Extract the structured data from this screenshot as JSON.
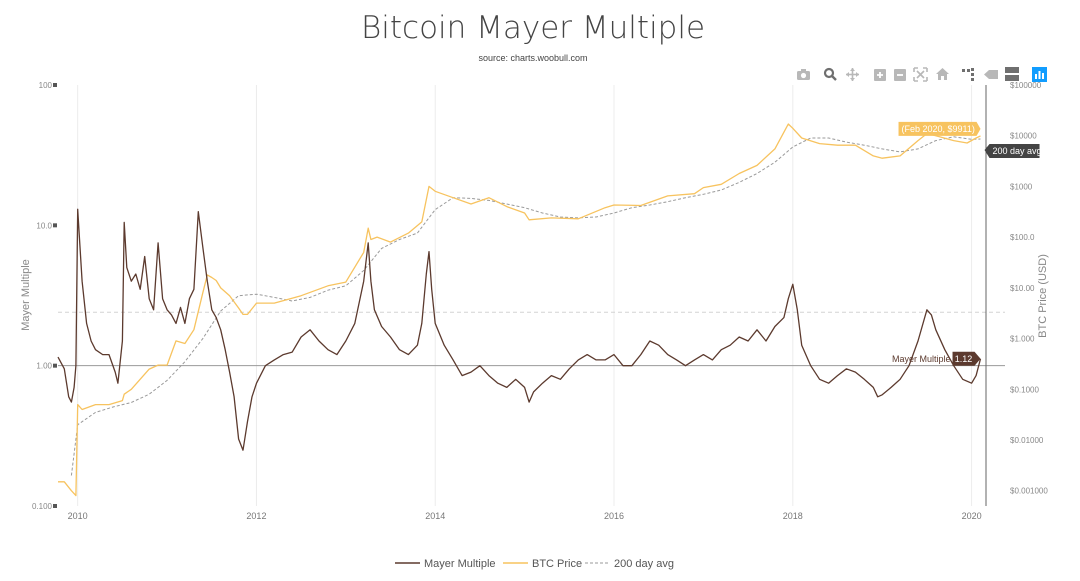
{
  "chart_data": {
    "type": "line",
    "title": "Bitcoin Mayer Multiple",
    "subtitle": "source: charts.woobull.com",
    "xlabel": "",
    "ylabel_left": "Mayer Multiple",
    "ylabel_right": "BTC Price (USD)",
    "x_ticks": [
      "2010",
      "2012",
      "2014",
      "2016",
      "2018",
      "2020"
    ],
    "x_range": [
      2009.78,
      2020.15
    ],
    "y_left_scale": "log",
    "y_left_range": [
      0.1,
      100
    ],
    "y_left_ticks": [
      "100",
      "10.0",
      "1.00",
      "0.100"
    ],
    "y_right_scale": "log",
    "y_right_range": [
      0.0005,
      100000
    ],
    "y_right_ticks": [
      "$100000",
      "$10000",
      "$1000",
      "$100.0",
      "$10.00",
      "$1.000",
      "$0.1000",
      "$0.01000",
      "$0.001000"
    ],
    "reference_lines": [
      {
        "axis": "left",
        "value": 1.0,
        "style": "solid"
      },
      {
        "axis": "left",
        "value": 2.4,
        "style": "dashed"
      }
    ],
    "grid": "vertical",
    "legend_position": "bottom-center",
    "series": [
      {
        "name": "Mayer Multiple",
        "axis": "left",
        "color": "#5c3a2e",
        "x": [
          2009.78,
          2009.85,
          2009.9,
          2009.93,
          2009.96,
          2009.98,
          2010.0,
          2010.02,
          2010.05,
          2010.1,
          2010.15,
          2010.2,
          2010.28,
          2010.35,
          2010.42,
          2010.45,
          2010.5,
          2010.52,
          2010.55,
          2010.6,
          2010.65,
          2010.7,
          2010.75,
          2010.8,
          2010.85,
          2010.9,
          2010.95,
          2011.0,
          2011.05,
          2011.1,
          2011.15,
          2011.2,
          2011.25,
          2011.3,
          2011.35,
          2011.4,
          2011.45,
          2011.5,
          2011.55,
          2011.6,
          2011.65,
          2011.7,
          2011.75,
          2011.8,
          2011.85,
          2011.9,
          2011.95,
          2012.0,
          2012.1,
          2012.2,
          2012.3,
          2012.4,
          2012.5,
          2012.6,
          2012.7,
          2012.8,
          2012.9,
          2013.0,
          2013.1,
          2013.2,
          2013.25,
          2013.28,
          2013.32,
          2013.4,
          2013.5,
          2013.6,
          2013.7,
          2013.8,
          2013.85,
          2013.9,
          2013.93,
          2013.96,
          2014.0,
          2014.1,
          2014.2,
          2014.3,
          2014.4,
          2014.5,
          2014.6,
          2014.7,
          2014.8,
          2014.9,
          2015.0,
          2015.05,
          2015.1,
          2015.2,
          2015.3,
          2015.4,
          2015.5,
          2015.6,
          2015.7,
          2015.8,
          2015.9,
          2016.0,
          2016.1,
          2016.2,
          2016.3,
          2016.4,
          2016.5,
          2016.6,
          2016.7,
          2016.8,
          2016.9,
          2017.0,
          2017.1,
          2017.2,
          2017.3,
          2017.4,
          2017.5,
          2017.6,
          2017.7,
          2017.8,
          2017.9,
          2017.95,
          2018.0,
          2018.05,
          2018.1,
          2018.2,
          2018.3,
          2018.4,
          2018.5,
          2018.6,
          2018.7,
          2018.8,
          2018.9,
          2018.95,
          2019.0,
          2019.1,
          2019.2,
          2019.3,
          2019.4,
          2019.5,
          2019.55,
          2019.6,
          2019.7,
          2019.8,
          2019.9,
          2020.0,
          2020.05,
          2020.1
        ],
        "values": [
          1.15,
          0.95,
          0.6,
          0.55,
          0.7,
          1.0,
          13.0,
          8.0,
          4.0,
          2.0,
          1.5,
          1.3,
          1.2,
          1.2,
          0.9,
          0.75,
          1.5,
          10.5,
          5.0,
          4.0,
          4.5,
          3.5,
          6.0,
          3.0,
          2.5,
          7.5,
          3.0,
          2.5,
          2.3,
          2.0,
          2.6,
          2.0,
          3.0,
          3.5,
          12.5,
          7.0,
          4.0,
          2.5,
          2.2,
          1.8,
          1.3,
          0.9,
          0.6,
          0.3,
          0.25,
          0.4,
          0.6,
          0.75,
          1.0,
          1.1,
          1.2,
          1.25,
          1.6,
          1.8,
          1.5,
          1.3,
          1.2,
          1.5,
          2.0,
          4.0,
          7.5,
          4.0,
          2.5,
          1.9,
          1.6,
          1.3,
          1.2,
          1.4,
          2.0,
          4.5,
          6.5,
          3.5,
          2.0,
          1.4,
          1.1,
          0.85,
          0.9,
          1.0,
          0.85,
          0.75,
          0.7,
          0.8,
          0.7,
          0.55,
          0.65,
          0.75,
          0.85,
          0.8,
          0.95,
          1.1,
          1.2,
          1.1,
          1.1,
          1.2,
          1.0,
          1.0,
          1.2,
          1.5,
          1.4,
          1.2,
          1.1,
          1.0,
          1.1,
          1.2,
          1.1,
          1.3,
          1.4,
          1.6,
          1.5,
          1.8,
          1.5,
          1.9,
          2.2,
          3.0,
          3.8,
          2.5,
          1.4,
          1.0,
          0.8,
          0.75,
          0.85,
          0.95,
          0.9,
          0.8,
          0.7,
          0.6,
          0.62,
          0.7,
          0.8,
          1.0,
          1.5,
          2.5,
          2.3,
          1.8,
          1.3,
          1.0,
          0.8,
          0.75,
          0.85,
          1.12
        ]
      },
      {
        "name": "BTC Price",
        "axis": "right",
        "color": "#f7c35f",
        "x": [
          2009.78,
          2009.85,
          2009.93,
          2009.98,
          2010.0,
          2010.05,
          2010.2,
          2010.35,
          2010.5,
          2010.52,
          2010.6,
          2010.8,
          2010.9,
          2011.0,
          2011.1,
          2011.2,
          2011.3,
          2011.4,
          2011.45,
          2011.5,
          2011.55,
          2011.6,
          2011.7,
          2011.8,
          2011.85,
          2011.9,
          2012.0,
          2012.2,
          2012.5,
          2012.8,
          2013.0,
          2013.2,
          2013.25,
          2013.28,
          2013.35,
          2013.5,
          2013.7,
          2013.85,
          2013.93,
          2014.0,
          2014.2,
          2014.4,
          2014.6,
          2014.8,
          2015.0,
          2015.05,
          2015.3,
          2015.6,
          2015.9,
          2016.0,
          2016.3,
          2016.6,
          2016.9,
          2017.0,
          2017.2,
          2017.4,
          2017.6,
          2017.8,
          2017.95,
          2018.0,
          2018.1,
          2018.3,
          2018.5,
          2018.7,
          2018.9,
          2019.0,
          2019.2,
          2019.4,
          2019.5,
          2019.6,
          2019.8,
          2019.95,
          2020.05,
          2020.1
        ],
        "values": [
          0.0015,
          0.0015,
          0.001,
          0.0008,
          0.05,
          0.04,
          0.05,
          0.05,
          0.06,
          0.08,
          0.1,
          0.25,
          0.3,
          0.3,
          0.9,
          0.8,
          1.5,
          8.0,
          18.0,
          16.0,
          14.0,
          10.0,
          7.0,
          4.0,
          3.0,
          3.0,
          5.0,
          5.0,
          7.0,
          11.0,
          13.0,
          50.0,
          150.0,
          90.0,
          100.0,
          80.0,
          120.0,
          200.0,
          1000.0,
          800.0,
          600.0,
          450.0,
          600.0,
          400.0,
          300.0,
          220.0,
          240.0,
          230.0,
          380.0,
          430.0,
          420.0,
          650.0,
          720.0,
          950.0,
          1100.0,
          1800.0,
          2600.0,
          5500.0,
          17000.0,
          14000.0,
          9000.0,
          7000.0,
          6500.0,
          6500.0,
          4000.0,
          3600.0,
          4000.0,
          8000.0,
          11000.0,
          10000.0,
          8000.0,
          7200.0,
          9000.0,
          9911.0
        ]
      },
      {
        "name": "200 day avg",
        "axis": "right",
        "color": "#9a9a9a",
        "style": "dashed",
        "x": [
          2009.93,
          2010.0,
          2010.2,
          2010.4,
          2010.6,
          2010.8,
          2011.0,
          2011.2,
          2011.4,
          2011.6,
          2011.8,
          2012.0,
          2012.2,
          2012.4,
          2012.6,
          2012.8,
          2013.0,
          2013.2,
          2013.4,
          2013.6,
          2013.8,
          2014.0,
          2014.2,
          2014.4,
          2014.6,
          2014.8,
          2015.0,
          2015.2,
          2015.4,
          2015.6,
          2015.8,
          2016.0,
          2016.2,
          2016.4,
          2016.6,
          2016.8,
          2017.0,
          2017.2,
          2017.4,
          2017.6,
          2017.8,
          2018.0,
          2018.2,
          2018.4,
          2018.6,
          2018.8,
          2019.0,
          2019.2,
          2019.4,
          2019.6,
          2019.8,
          2020.0,
          2020.1
        ],
        "values": [
          0.002,
          0.02,
          0.035,
          0.045,
          0.055,
          0.08,
          0.15,
          0.35,
          1.0,
          3.5,
          7.0,
          7.5,
          6.5,
          5.5,
          6.5,
          9.0,
          11.0,
          22.0,
          60.0,
          90.0,
          120.0,
          350.0,
          600.0,
          580.0,
          530.0,
          450.0,
          380.0,
          300.0,
          250.0,
          240.0,
          250.0,
          300.0,
          380.0,
          430.0,
          500.0,
          600.0,
          700.0,
          850.0,
          1200.0,
          1800.0,
          3000.0,
          6000.0,
          9000.0,
          9000.0,
          7500.0,
          6500.0,
          5500.0,
          4800.0,
          5500.0,
          8000.0,
          9500.0,
          8500.0,
          8600.0
        ]
      }
    ],
    "annotations": [
      {
        "series": "BTC Price",
        "label": "(Feb 2020, $9911)",
        "bg": "#f7c35f"
      },
      {
        "series": "200 day avg",
        "label": "200 day avg",
        "bg": "#444444"
      },
      {
        "series": "Mayer Multiple",
        "label": "Mayer Multiple",
        "value_label": "1.12",
        "bg": "#5c3a2e"
      }
    ]
  },
  "modebar": {
    "icons": [
      "camera-icon",
      "zoom-icon",
      "pan-icon",
      "zoom-in-icon",
      "zoom-out-icon",
      "autoscale-icon",
      "reset-axes-icon",
      "spike-lines-icon",
      "hover-closest-icon",
      "hover-compare-icon",
      "plotly-logo-icon"
    ],
    "logo_color": "#119dff"
  }
}
